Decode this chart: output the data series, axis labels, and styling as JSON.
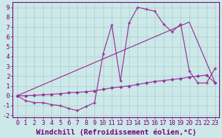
{
  "xlabel": "Windchill (Refroidissement éolien,°C)",
  "bg_color": "#cce8e8",
  "line_color": "#993399",
  "grid_color": "#aacccc",
  "xlim": [
    -0.5,
    23.5
  ],
  "ylim": [
    -2.2,
    9.5
  ],
  "xticks": [
    0,
    1,
    2,
    3,
    4,
    5,
    6,
    7,
    8,
    9,
    10,
    11,
    12,
    13,
    14,
    15,
    16,
    17,
    18,
    19,
    20,
    21,
    22,
    23
  ],
  "yticks": [
    -2,
    -1,
    0,
    1,
    2,
    3,
    4,
    5,
    6,
    7,
    8,
    9
  ],
  "line1_x": [
    0,
    1,
    2,
    3,
    4,
    5,
    6,
    7,
    8,
    9,
    10,
    11,
    12,
    13,
    14,
    15,
    16,
    17,
    18,
    19,
    20,
    21,
    22,
    23
  ],
  "line1_y": [
    0,
    -0.5,
    -0.7,
    -0.7,
    -0.9,
    -1.0,
    -1.3,
    -1.5,
    -1.1,
    -0.7,
    4.3,
    7.2,
    1.5,
    7.4,
    9.0,
    8.8,
    8.6,
    7.3,
    6.5,
    7.3,
    2.5,
    1.3,
    1.3,
    2.8
  ],
  "line2_x": [
    0,
    20,
    23
  ],
  "line2_y": [
    0,
    7.5,
    1.3
  ],
  "line3_x": [
    0,
    1,
    2,
    3,
    4,
    5,
    6,
    7,
    8,
    9,
    10,
    11,
    12,
    13,
    14,
    15,
    16,
    17,
    18,
    19,
    20,
    21,
    22,
    23
  ],
  "line3_y": [
    0,
    0.0,
    0.05,
    0.1,
    0.15,
    0.2,
    0.3,
    0.35,
    0.4,
    0.5,
    0.65,
    0.8,
    0.9,
    1.0,
    1.15,
    1.3,
    1.45,
    1.55,
    1.65,
    1.75,
    1.9,
    2.0,
    2.1,
    1.3
  ],
  "font_color": "#770077",
  "tick_fontsize": 6.5,
  "xlabel_fontsize": 7.5
}
